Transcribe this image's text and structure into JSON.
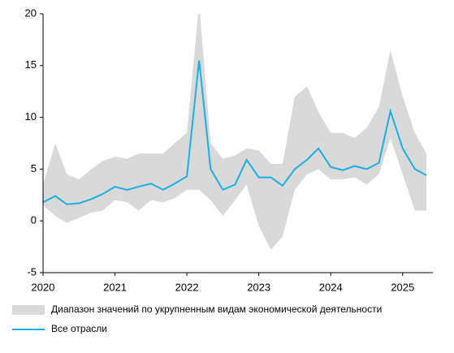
{
  "chart_data": {
    "type": "line",
    "x": [
      2020,
      2020.17,
      2020.33,
      2020.5,
      2020.67,
      2020.83,
      2021,
      2021.17,
      2021.33,
      2021.5,
      2021.67,
      2021.83,
      2022,
      2022.17,
      2022.33,
      2022.5,
      2022.67,
      2022.83,
      2023,
      2023.17,
      2023.33,
      2023.5,
      2023.67,
      2023.83,
      2024,
      2024.17,
      2024.33,
      2024.5,
      2024.67,
      2024.83,
      2025,
      2025.17,
      2025.33
    ],
    "series": [
      {
        "name": "Диапазон значений по укрупненным видам экономической деятельности",
        "type": "band",
        "color": "#d9d9d9",
        "lower": [
          1.5,
          0.5,
          -0.2,
          0.3,
          0.8,
          1.0,
          2.0,
          1.8,
          1.0,
          2.0,
          1.8,
          2.2,
          3.0,
          3.0,
          2.0,
          0.5,
          2.0,
          3.5,
          -0.5,
          -2.8,
          -1.5,
          3.0,
          4.5,
          5.0,
          4.0,
          4.0,
          4.2,
          3.5,
          4.5,
          8.0,
          4.5,
          1.0,
          1.0
        ],
        "upper": [
          3.5,
          7.5,
          4.5,
          4.0,
          5.0,
          5.8,
          6.2,
          6.0,
          6.5,
          6.5,
          6.5,
          7.5,
          8.5,
          21,
          7.5,
          6.0,
          6.3,
          7.0,
          6.8,
          5.5,
          5.5,
          12.0,
          13.0,
          10.5,
          8.5,
          8.5,
          8.0,
          9.0,
          11.0,
          16.5,
          12.0,
          8.5,
          6.5
        ]
      },
      {
        "name": "Все отрасли",
        "color": "#1ab0e6",
        "values": [
          1.8,
          2.4,
          1.6,
          1.7,
          2.1,
          2.6,
          3.3,
          3.0,
          3.3,
          3.6,
          3.0,
          3.6,
          4.3,
          15.5,
          5.0,
          3.0,
          3.5,
          5.9,
          4.2,
          4.2,
          3.4,
          5.0,
          5.9,
          7.0,
          5.2,
          4.9,
          5.3,
          5.0,
          5.6,
          10.6,
          7.0,
          5.0,
          4.4
        ]
      }
    ],
    "xlim": [
      2020,
      2025.33
    ],
    "xticks": [
      2020,
      2021,
      2022,
      2023,
      2024,
      2025
    ],
    "ylim": [
      -5,
      20
    ],
    "yticks": [
      -5,
      0,
      5,
      10,
      15,
      20
    ]
  }
}
